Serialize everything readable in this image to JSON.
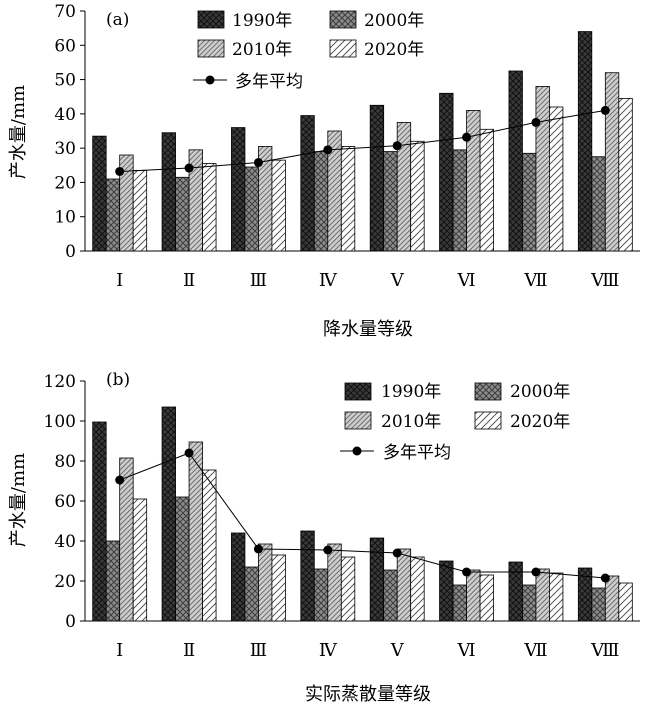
{
  "chart_data": [
    {
      "type": "bar",
      "panel_label": "(a)",
      "categories": [
        "Ⅰ",
        "Ⅱ",
        "Ⅲ",
        "Ⅳ",
        "Ⅴ",
        "Ⅵ",
        "Ⅶ",
        "Ⅷ"
      ],
      "series": [
        {
          "name": "1990年",
          "values": [
            33.5,
            34.5,
            36,
            39.5,
            42.5,
            46,
            52.5,
            64
          ],
          "color": "#3a3a3a",
          "pattern": "cross-dark"
        },
        {
          "name": "2000年",
          "values": [
            21,
            21.5,
            24.5,
            29,
            29,
            29.5,
            28.5,
            27.5
          ],
          "color": "#8c8c8c",
          "pattern": "cross-light"
        },
        {
          "name": "2010年",
          "values": [
            28,
            29.5,
            30.5,
            35,
            37.5,
            41,
            48,
            52
          ],
          "color": "#c8c8c8",
          "pattern": "diag-gray"
        },
        {
          "name": "2020年",
          "values": [
            23.5,
            25.5,
            26.5,
            30.5,
            32,
            35.5,
            42,
            44.5
          ],
          "color": "#ffffff",
          "pattern": "diag-white"
        }
      ],
      "line": {
        "name": "多年平均",
        "values": [
          23.2,
          24.2,
          25.8,
          29.5,
          30.7,
          33.2,
          37.5,
          41
        ]
      },
      "ylabel": "产水量/mm",
      "xlabel": "降水量等级",
      "ylim": [
        0,
        70
      ],
      "yticks": [
        0,
        10,
        20,
        30,
        40,
        50,
        60,
        70
      ],
      "grid": false,
      "legend": "top-center"
    },
    {
      "type": "bar",
      "panel_label": "(b)",
      "categories": [
        "Ⅰ",
        "Ⅱ",
        "Ⅲ",
        "Ⅳ",
        "Ⅴ",
        "Ⅵ",
        "Ⅶ",
        "Ⅷ"
      ],
      "series": [
        {
          "name": "1990年",
          "values": [
            99.5,
            107,
            44,
            45,
            41.5,
            30,
            29.5,
            26.5
          ],
          "color": "#3a3a3a",
          "pattern": "cross-dark"
        },
        {
          "name": "2000年",
          "values": [
            40,
            62,
            27,
            26,
            25.5,
            18,
            18,
            16.5
          ],
          "color": "#8c8c8c",
          "pattern": "cross-light"
        },
        {
          "name": "2010年",
          "values": [
            81.5,
            89.5,
            38.5,
            38.5,
            36,
            25.5,
            26,
            22.5
          ],
          "color": "#c8c8c8",
          "pattern": "diag-gray"
        },
        {
          "name": "2020年",
          "values": [
            61,
            75.5,
            33,
            32,
            32,
            23,
            24,
            19
          ],
          "color": "#ffffff",
          "pattern": "diag-white"
        }
      ],
      "line": {
        "name": "多年平均",
        "values": [
          70.5,
          84,
          36,
          35.5,
          34,
          24.5,
          24.5,
          21.5
        ]
      },
      "ylabel": "产水量/mm",
      "xlabel": "实际蒸散量等级",
      "ylim": [
        0,
        120
      ],
      "yticks": [
        0,
        20,
        40,
        60,
        80,
        100,
        120
      ],
      "grid": false,
      "legend": "top-right"
    }
  ]
}
